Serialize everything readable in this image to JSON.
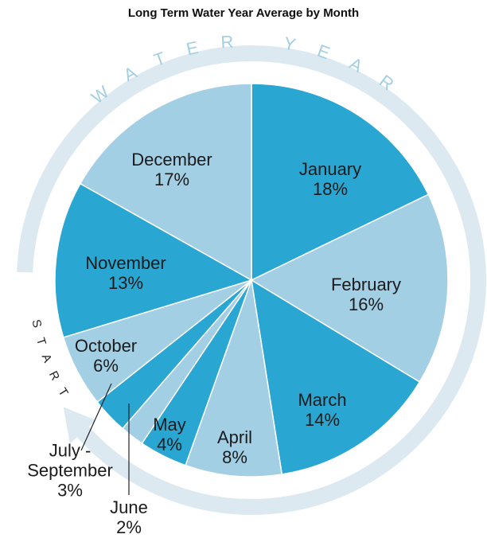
{
  "chart_data": {
    "type": "pie",
    "title": "Long Term Water Year Average by Month",
    "categories": [
      "January",
      "February",
      "March",
      "April",
      "May",
      "June",
      "July - September",
      "October",
      "November",
      "December"
    ],
    "values": [
      18,
      16,
      14,
      8,
      4,
      2,
      3,
      6,
      13,
      17
    ],
    "value_labels": [
      "18%",
      "16%",
      "14%",
      "8%",
      "4%",
      "2%",
      "3%",
      "6%",
      "13%",
      "17%"
    ],
    "colors": [
      "#29a6d1",
      "#a3cfe5",
      "#29a6d1",
      "#a3cfe5",
      "#29a6d1",
      "#a3cfe5",
      "#29a6d1",
      "#a3cfe5",
      "#29a6d1",
      "#a3cfe5"
    ],
    "ring_top": "WATER YEAR",
    "ring_left": "START"
  }
}
